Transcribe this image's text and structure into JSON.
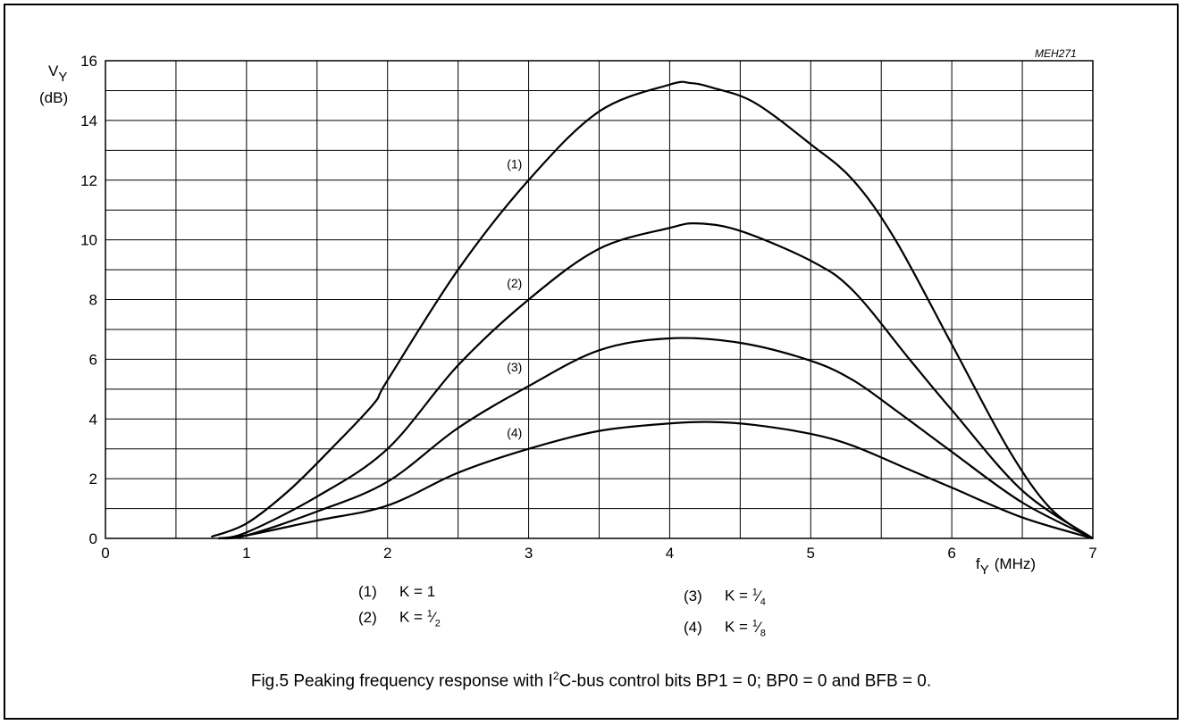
{
  "figure_code": "MEH271",
  "y_axis": {
    "symbol": "V",
    "subscript": "Y",
    "unit": "(dB)"
  },
  "x_axis": {
    "symbol": "f",
    "subscript": "Y",
    "unit": "(MHz)"
  },
  "caption": {
    "prefix": "Fig.5  Peaking frequency response with I",
    "superscript": "2",
    "suffix": "C-bus control bits BP1 = 0; BP0 = 0 and BFB = 0."
  },
  "legend": [
    {
      "id": "(1)",
      "text": "K = 1"
    },
    {
      "id": "(2)",
      "text": "K = ",
      "num": "1",
      "den": "2"
    },
    {
      "id": "(3)",
      "text": "K = ",
      "num": "1",
      "den": "4"
    },
    {
      "id": "(4)",
      "text": "K = ",
      "num": "1",
      "den": "8"
    }
  ],
  "chart_data": {
    "type": "line",
    "xlim": [
      0,
      7
    ],
    "ylim": [
      0,
      16
    ],
    "x_ticks": [
      0,
      1,
      2,
      3,
      4,
      5,
      6,
      7
    ],
    "y_ticks": [
      0,
      2,
      4,
      6,
      8,
      10,
      12,
      14,
      16
    ],
    "x_grid_step": 0.5,
    "y_grid_step": 1,
    "grid": true,
    "series": [
      {
        "name": "(1)",
        "label_at": [
          2.9,
          12.4
        ],
        "x": [
          0.75,
          1.0,
          1.3,
          1.6,
          1.9,
          2.0,
          2.5,
          3.0,
          3.5,
          4.0,
          4.15,
          4.3,
          4.6,
          5.0,
          5.3,
          5.6,
          6.0,
          6.4,
          6.7,
          7.0
        ],
        "y": [
          0.05,
          0.5,
          1.6,
          3.0,
          4.5,
          5.3,
          9.0,
          12.0,
          14.3,
          15.2,
          15.25,
          15.1,
          14.6,
          13.2,
          12.0,
          10.0,
          6.5,
          3.0,
          1.0,
          0.0
        ]
      },
      {
        "name": "(2)",
        "label_at": [
          2.9,
          8.4
        ],
        "x": [
          0.8,
          1.0,
          1.5,
          2.0,
          2.5,
          3.0,
          3.5,
          4.0,
          4.2,
          4.5,
          5.0,
          5.3,
          5.7,
          6.0,
          6.5,
          7.0
        ],
        "y": [
          0.0,
          0.2,
          1.4,
          3.0,
          5.8,
          8.0,
          9.7,
          10.4,
          10.55,
          10.3,
          9.3,
          8.3,
          6.0,
          4.3,
          1.6,
          0.0
        ]
      },
      {
        "name": "(3)",
        "label_at": [
          2.9,
          5.6
        ],
        "x": [
          0.8,
          1.0,
          1.5,
          2.0,
          2.5,
          3.0,
          3.5,
          4.0,
          4.5,
          5.0,
          5.3,
          5.6,
          6.0,
          6.5,
          7.0
        ],
        "y": [
          0.0,
          0.1,
          0.9,
          1.9,
          3.7,
          5.1,
          6.3,
          6.7,
          6.55,
          5.95,
          5.3,
          4.3,
          2.9,
          1.2,
          0.0
        ]
      },
      {
        "name": "(4)",
        "label_at": [
          2.9,
          3.4
        ],
        "x": [
          0.8,
          1.0,
          1.5,
          2.0,
          2.5,
          3.0,
          3.5,
          4.0,
          4.3,
          4.6,
          5.0,
          5.3,
          5.7,
          6.0,
          6.5,
          7.0
        ],
        "y": [
          0.0,
          0.1,
          0.6,
          1.1,
          2.2,
          3.0,
          3.6,
          3.85,
          3.9,
          3.8,
          3.5,
          3.1,
          2.3,
          1.7,
          0.7,
          0.0
        ]
      }
    ]
  }
}
